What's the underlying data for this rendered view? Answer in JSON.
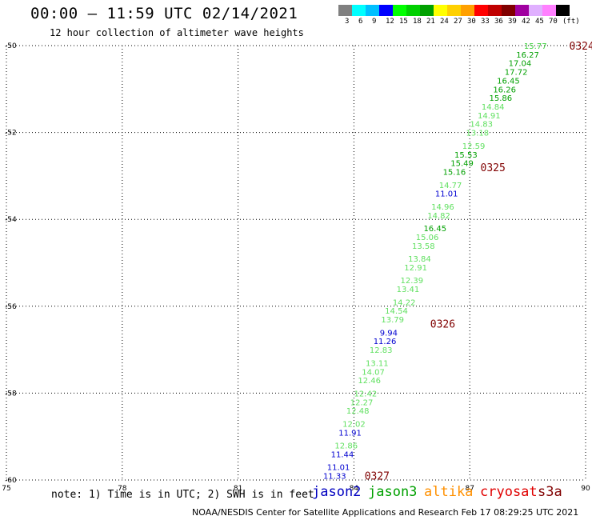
{
  "header": {
    "title": "00:00 – 11:59 UTC 02/14/2021",
    "subtitle": "12 hour collection of altimeter wave heights"
  },
  "legend": {
    "colors": [
      "#808080",
      "#00ffff",
      "#00c0ff",
      "#0000ff",
      "#00ff00",
      "#00d000",
      "#00a000",
      "#ffff00",
      "#ffd000",
      "#ffa000",
      "#ff0000",
      "#c00000",
      "#800000",
      "#a000a0",
      "#e0b0ff",
      "#ff80ff",
      "#000000"
    ],
    "labels": [
      "3",
      "6",
      "9",
      "12",
      "15",
      "18",
      "21",
      "24",
      "27",
      "30",
      "33",
      "36",
      "39",
      "42",
      "45",
      "70",
      "(ft)"
    ]
  },
  "map": {
    "lon_range": [
      75,
      90
    ],
    "lat_range": [
      -50,
      -60
    ],
    "lon_ticks": [
      "75",
      "78",
      "81",
      "84",
      "87",
      "90"
    ],
    "lat_ticks": [
      "-50",
      "-52",
      "-54",
      "-56",
      "-58",
      "-60"
    ],
    "grid": "dotted",
    "observations": [
      {
        "v": "15.77",
        "lon": 88.7,
        "lat": -50.0,
        "c": "#40d040"
      },
      {
        "v": "16.27",
        "lon": 88.5,
        "lat": -50.2,
        "c": "#00a000"
      },
      {
        "v": "17.04",
        "lon": 88.3,
        "lat": -50.4,
        "c": "#00a000"
      },
      {
        "v": "17.72",
        "lon": 88.2,
        "lat": -50.6,
        "c": "#00a000"
      },
      {
        "v": "16.45",
        "lon": 88.0,
        "lat": -50.8,
        "c": "#00a000"
      },
      {
        "v": "16.26",
        "lon": 87.9,
        "lat": -51.0,
        "c": "#00a000"
      },
      {
        "v": "15.86",
        "lon": 87.8,
        "lat": -51.2,
        "c": "#00a000"
      },
      {
        "v": "14.84",
        "lon": 87.6,
        "lat": -51.4,
        "c": "#60e060"
      },
      {
        "v": "14.91",
        "lon": 87.5,
        "lat": -51.6,
        "c": "#60e060"
      },
      {
        "v": "14.83",
        "lon": 87.3,
        "lat": -51.8,
        "c": "#60e060"
      },
      {
        "v": "13.18",
        "lon": 87.2,
        "lat": -52.0,
        "c": "#60e060"
      },
      {
        "v": "12.59",
        "lon": 87.1,
        "lat": -52.3,
        "c": "#60e060"
      },
      {
        "v": "15.53",
        "lon": 86.9,
        "lat": -52.5,
        "c": "#00a000"
      },
      {
        "v": "15.49",
        "lon": 86.8,
        "lat": -52.7,
        "c": "#00a000"
      },
      {
        "v": "15.16",
        "lon": 86.6,
        "lat": -52.9,
        "c": "#00a000"
      },
      {
        "v": "14.77",
        "lon": 86.5,
        "lat": -53.2,
        "c": "#60e060"
      },
      {
        "v": "11.01",
        "lon": 86.4,
        "lat": -53.4,
        "c": "#0000d0"
      },
      {
        "v": "14.96",
        "lon": 86.3,
        "lat": -53.7,
        "c": "#60e060"
      },
      {
        "v": "14.82",
        "lon": 86.2,
        "lat": -53.9,
        "c": "#60e060"
      },
      {
        "v": "16.45",
        "lon": 86.1,
        "lat": -54.2,
        "c": "#00a000"
      },
      {
        "v": "15.06",
        "lon": 85.9,
        "lat": -54.4,
        "c": "#60e060"
      },
      {
        "v": "13.58",
        "lon": 85.8,
        "lat": -54.6,
        "c": "#60e060"
      },
      {
        "v": "13.84",
        "lon": 85.7,
        "lat": -54.9,
        "c": "#60e060"
      },
      {
        "v": "12.91",
        "lon": 85.6,
        "lat": -55.1,
        "c": "#60e060"
      },
      {
        "v": "12.39",
        "lon": 85.5,
        "lat": -55.4,
        "c": "#60e060"
      },
      {
        "v": "13.41",
        "lon": 85.4,
        "lat": -55.6,
        "c": "#60e060"
      },
      {
        "v": "14.22",
        "lon": 85.3,
        "lat": -55.9,
        "c": "#60e060"
      },
      {
        "v": "14.54",
        "lon": 85.1,
        "lat": -56.1,
        "c": "#60e060"
      },
      {
        "v": "13.79",
        "lon": 85.0,
        "lat": -56.3,
        "c": "#60e060"
      },
      {
        "v": "9.94",
        "lon": 84.9,
        "lat": -56.6,
        "c": "#0000d0"
      },
      {
        "v": "11.26",
        "lon": 84.8,
        "lat": -56.8,
        "c": "#0000d0"
      },
      {
        "v": "12.83",
        "lon": 84.7,
        "lat": -57.0,
        "c": "#60e060"
      },
      {
        "v": "13.11",
        "lon": 84.6,
        "lat": -57.3,
        "c": "#60e060"
      },
      {
        "v": "14.07",
        "lon": 84.5,
        "lat": -57.5,
        "c": "#60e060"
      },
      {
        "v": "12.46",
        "lon": 84.4,
        "lat": -57.7,
        "c": "#60e060"
      },
      {
        "v": "12.42",
        "lon": 84.3,
        "lat": -58.0,
        "c": "#60e060"
      },
      {
        "v": "12.27",
        "lon": 84.2,
        "lat": -58.2,
        "c": "#60e060"
      },
      {
        "v": "12.48",
        "lon": 84.1,
        "lat": -58.4,
        "c": "#60e060"
      },
      {
        "v": "12.02",
        "lon": 84.0,
        "lat": -58.7,
        "c": "#60e060"
      },
      {
        "v": "11.91",
        "lon": 83.9,
        "lat": -58.9,
        "c": "#0000d0"
      },
      {
        "v": "12.86",
        "lon": 83.8,
        "lat": -59.2,
        "c": "#60e060"
      },
      {
        "v": "11.44",
        "lon": 83.7,
        "lat": -59.4,
        "c": "#0000d0"
      },
      {
        "v": "11.01",
        "lon": 83.6,
        "lat": -59.7,
        "c": "#0000d0"
      },
      {
        "v": "11.33",
        "lon": 83.5,
        "lat": -59.9,
        "c": "#0000d0"
      }
    ],
    "time_labels": [
      {
        "t": "0324",
        "lon": 89.9,
        "lat": -50.0
      },
      {
        "t": "0325",
        "lon": 87.6,
        "lat": -52.8
      },
      {
        "t": "0326",
        "lon": 86.3,
        "lat": -56.4
      },
      {
        "t": "0327",
        "lon": 84.6,
        "lat": -59.9
      }
    ],
    "time_color": "#800000"
  },
  "footer": {
    "note": "note: 1) Time is in UTC; 2) SWH is in feet",
    "satellites": [
      {
        "name": "jason2",
        "color": "#0000c0"
      },
      {
        "name": "jason3",
        "color": "#00a000"
      },
      {
        "name": "altika",
        "color": "#ff9000"
      },
      {
        "name": "cryosat",
        "color": "#e00000"
      },
      {
        "name": "s3a",
        "color": "#800000"
      }
    ],
    "credit": "NOAA/NESDIS Center for Satellite Applications and Research    Feb 17 08:29:25 UTC 2021"
  }
}
